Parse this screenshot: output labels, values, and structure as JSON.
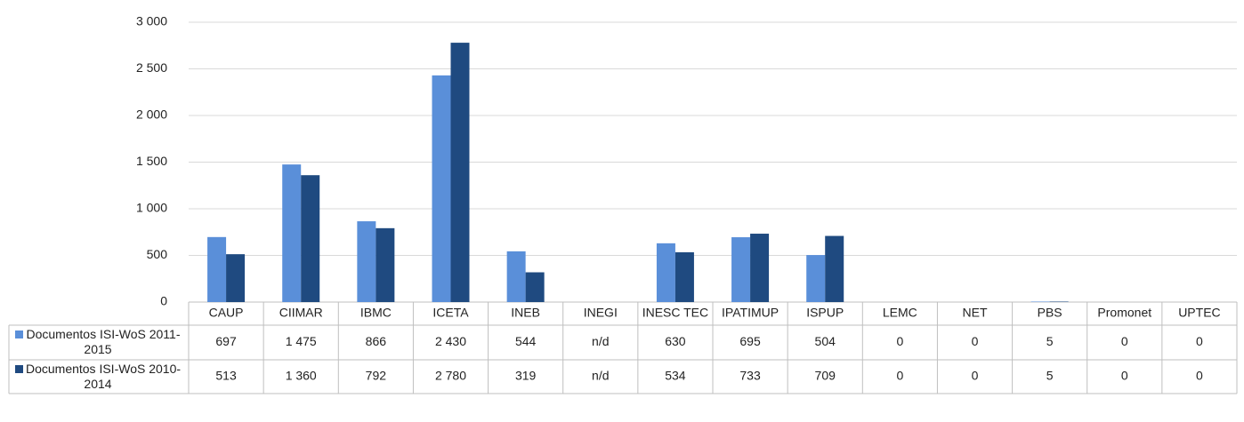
{
  "chart_data": {
    "type": "bar",
    "categories": [
      "CAUP",
      "CIIMAR",
      "IBMC",
      "ICETA",
      "INEB",
      "INEGI",
      "INESC TEC",
      "IPATIMUP",
      "ISPUP",
      "LEMC",
      "NET",
      "PBS",
      "Promonet",
      "UPTEC"
    ],
    "series": [
      {
        "name": "Documentos ISI-WoS 2011-2015",
        "color": "#5a8fd9",
        "values": [
          697,
          1475,
          866,
          2430,
          544,
          null,
          630,
          695,
          504,
          0,
          0,
          5,
          0,
          0
        ],
        "value_labels": [
          "697",
          "1 475",
          "866",
          "2 430",
          "544",
          "n/d",
          "630",
          "695",
          "504",
          "0",
          "0",
          "5",
          "0",
          "0"
        ]
      },
      {
        "name": "Documentos ISI-WoS 2010-2014",
        "color": "#1f4a80",
        "values": [
          513,
          1360,
          792,
          2780,
          319,
          null,
          534,
          733,
          709,
          0,
          0,
          5,
          0,
          0
        ],
        "value_labels": [
          "513",
          "1 360",
          "792",
          "2 780",
          "319",
          "n/d",
          "534",
          "733",
          "709",
          "0",
          "0",
          "5",
          "0",
          "0"
        ]
      }
    ],
    "ylim": [
      0,
      3000
    ],
    "yticks": [
      0,
      500,
      {
        "value": 1000,
        "label": "1 000"
      },
      {
        "value": 1500,
        "label": "1 500"
      },
      {
        "value": 2000,
        "label": "2 000"
      },
      {
        "value": 2500,
        "label": "2 500"
      },
      {
        "value": 3000,
        "label": "3 000"
      }
    ],
    "grid": true
  }
}
